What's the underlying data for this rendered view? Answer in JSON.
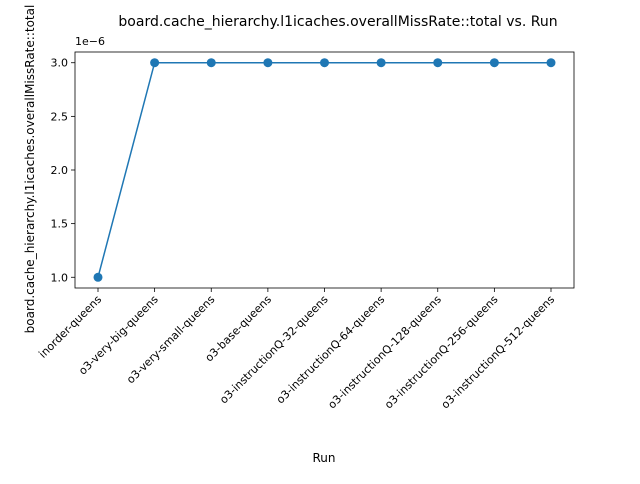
{
  "chart_data": {
    "type": "line",
    "title": "board.cache_hierarchy.l1icaches.overallMissRate::total vs. Run",
    "xlabel": "Run",
    "ylabel": "board.cache_hierarchy.l1icaches.overallMissRate::total",
    "categories": [
      "inorder-queens",
      "o3-very-big-queens",
      "o3-very-small-queens",
      "o3-base-queens",
      "o3-instructionQ-32-queens",
      "o3-instructionQ-64-queens",
      "o3-instructionQ-128-queens",
      "o3-instructionQ-256-queens",
      "o3-instructionQ-512-queens"
    ],
    "series": [
      {
        "values": [
          1e-06,
          3e-06,
          3e-06,
          3e-06,
          3e-06,
          3e-06,
          3e-06,
          3e-06,
          3e-06
        ],
        "color": "#1f77b4",
        "marker": "circle"
      }
    ],
    "y_ticks": [
      1.0,
      1.5,
      2.0,
      2.5,
      3.0
    ],
    "y_tick_labels": [
      "1.0",
      "1.5",
      "2.0",
      "2.5",
      "3.0"
    ],
    "y_scale_label": "1e−6",
    "y_scale_factor": 1e-06,
    "ylim": [
      0.9,
      3.1
    ],
    "grid": false,
    "legend": "none"
  }
}
